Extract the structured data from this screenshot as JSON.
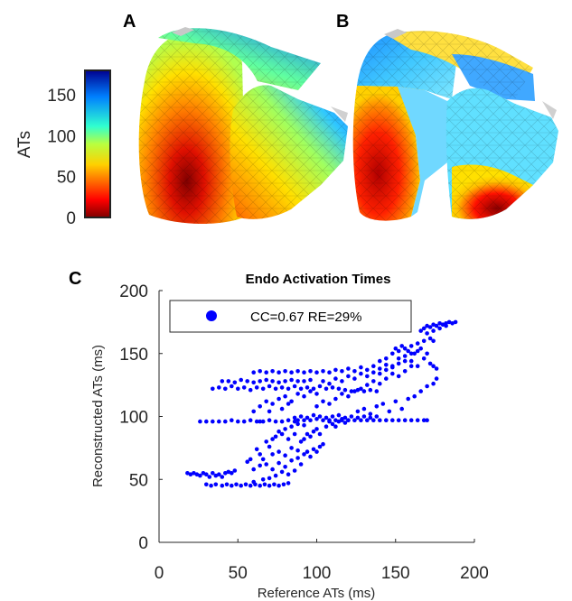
{
  "panels": {
    "a_label": "A",
    "b_label": "B",
    "c_label": "C"
  },
  "colorbar": {
    "title": "ATs",
    "ticks": [
      "0",
      "50",
      "100",
      "150"
    ],
    "tick_values": [
      0,
      50,
      100,
      150
    ],
    "range": [
      0,
      180
    ],
    "colormap": "jet-reversed"
  },
  "heart_maps": [
    {
      "name": "A",
      "description_colors": [
        "#8b0000",
        "#ff2000",
        "#ffd000",
        "#2090ff"
      ]
    },
    {
      "name": "B",
      "description_colors": [
        "#8b0000",
        "#ff2000",
        "#ffd000",
        "#2090ff"
      ]
    }
  ],
  "chart_data": {
    "type": "scatter",
    "title": "Endo Activation Times",
    "xlabel": "Reference ATs (ms)",
    "ylabel": "Reconstructed ATs (ms)",
    "xlim": [
      0,
      200
    ],
    "ylim": [
      0,
      200
    ],
    "xticks": [
      "0",
      "50",
      "100",
      "150",
      "200"
    ],
    "yticks": [
      "0",
      "50",
      "100",
      "150",
      "200"
    ],
    "grid": false,
    "legend_position": "top-left",
    "marker_color": "#0000ff",
    "series": [
      {
        "name": "CC=0.67 RE=29%",
        "points": [
          [
            18,
            55
          ],
          [
            20,
            54
          ],
          [
            22,
            55
          ],
          [
            24,
            54
          ],
          [
            26,
            53
          ],
          [
            28,
            55
          ],
          [
            30,
            54
          ],
          [
            32,
            52
          ],
          [
            34,
            55
          ],
          [
            36,
            53
          ],
          [
            38,
            54
          ],
          [
            40,
            52
          ],
          [
            42,
            55
          ],
          [
            44,
            56
          ],
          [
            46,
            55
          ],
          [
            48,
            57
          ],
          [
            30,
            46
          ],
          [
            33,
            45
          ],
          [
            36,
            46
          ],
          [
            40,
            45
          ],
          [
            43,
            46
          ],
          [
            46,
            45
          ],
          [
            49,
            46
          ],
          [
            52,
            45
          ],
          [
            55,
            46
          ],
          [
            58,
            45
          ],
          [
            61,
            46
          ],
          [
            64,
            45
          ],
          [
            67,
            46
          ],
          [
            70,
            45
          ],
          [
            73,
            46
          ],
          [
            76,
            45
          ],
          [
            79,
            46
          ],
          [
            82,
            47
          ],
          [
            60,
            48
          ],
          [
            66,
            50
          ],
          [
            70,
            51
          ],
          [
            74,
            53
          ],
          [
            78,
            56
          ],
          [
            82,
            54
          ],
          [
            86,
            57
          ],
          [
            60,
            58
          ],
          [
            64,
            61
          ],
          [
            68,
            62
          ],
          [
            72,
            58
          ],
          [
            76,
            63
          ],
          [
            80,
            60
          ],
          [
            84,
            65
          ],
          [
            88,
            67
          ],
          [
            90,
            62
          ],
          [
            92,
            70
          ],
          [
            94,
            72
          ],
          [
            96,
            68
          ],
          [
            98,
            74
          ],
          [
            100,
            72
          ],
          [
            102,
            76
          ],
          [
            104,
            78
          ],
          [
            72,
            70
          ],
          [
            76,
            72
          ],
          [
            80,
            69
          ],
          [
            84,
            75
          ],
          [
            88,
            73
          ],
          [
            90,
            80
          ],
          [
            92,
            82
          ],
          [
            94,
            86
          ],
          [
            96,
            84
          ],
          [
            98,
            88
          ],
          [
            100,
            90
          ],
          [
            102,
            86
          ],
          [
            106,
            92
          ],
          [
            108,
            96
          ],
          [
            110,
            94
          ],
          [
            112,
            92
          ],
          [
            114,
            96
          ],
          [
            116,
            98
          ],
          [
            118,
            95
          ],
          [
            120,
            97
          ],
          [
            26,
            96
          ],
          [
            30,
            96
          ],
          [
            34,
            96
          ],
          [
            38,
            96
          ],
          [
            42,
            96
          ],
          [
            46,
            97
          ],
          [
            50,
            96
          ],
          [
            54,
            96
          ],
          [
            58,
            97
          ],
          [
            62,
            96
          ],
          [
            66,
            96
          ],
          [
            70,
            97
          ],
          [
            74,
            96
          ],
          [
            78,
            96
          ],
          [
            82,
            97
          ],
          [
            86,
            96
          ],
          [
            88,
            97
          ],
          [
            92,
            97
          ],
          [
            96,
            97
          ],
          [
            100,
            98
          ],
          [
            104,
            97
          ],
          [
            108,
            97
          ],
          [
            112,
            97
          ],
          [
            116,
            97
          ],
          [
            120,
            97
          ],
          [
            124,
            97
          ],
          [
            128,
            97
          ],
          [
            132,
            97
          ],
          [
            136,
            97
          ],
          [
            140,
            97
          ],
          [
            144,
            97
          ],
          [
            148,
            97
          ],
          [
            152,
            97
          ],
          [
            156,
            97
          ],
          [
            160,
            97
          ],
          [
            164,
            97
          ],
          [
            168,
            97
          ],
          [
            170,
            97
          ],
          [
            86,
            99
          ],
          [
            90,
            100
          ],
          [
            94,
            99
          ],
          [
            98,
            101
          ],
          [
            102,
            100
          ],
          [
            106,
            99
          ],
          [
            110,
            100
          ],
          [
            114,
            101
          ],
          [
            118,
            99
          ],
          [
            122,
            100
          ],
          [
            126,
            99
          ],
          [
            130,
            100
          ],
          [
            134,
            99
          ],
          [
            138,
            100
          ],
          [
            76,
            88
          ],
          [
            80,
            90
          ],
          [
            84,
            92
          ],
          [
            88,
            94
          ],
          [
            92,
            93
          ],
          [
            74,
            84
          ],
          [
            78,
            86
          ],
          [
            82,
            82
          ],
          [
            86,
            86
          ],
          [
            68,
            80
          ],
          [
            70,
            76
          ],
          [
            72,
            82
          ],
          [
            62,
            74
          ],
          [
            64,
            70
          ],
          [
            66,
            66
          ],
          [
            56,
            64
          ],
          [
            58,
            66
          ],
          [
            34,
            122
          ],
          [
            38,
            123
          ],
          [
            42,
            122
          ],
          [
            46,
            124
          ],
          [
            50,
            122
          ],
          [
            54,
            123
          ],
          [
            58,
            121
          ],
          [
            62,
            123
          ],
          [
            66,
            122
          ],
          [
            70,
            124
          ],
          [
            74,
            122
          ],
          [
            78,
            123
          ],
          [
            82,
            122
          ],
          [
            86,
            124
          ],
          [
            90,
            122
          ],
          [
            94,
            123
          ],
          [
            98,
            122
          ],
          [
            102,
            124
          ],
          [
            106,
            122
          ],
          [
            110,
            123
          ],
          [
            114,
            122
          ],
          [
            118,
            121
          ],
          [
            122,
            120
          ],
          [
            126,
            121
          ],
          [
            130,
            120
          ],
          [
            134,
            121
          ],
          [
            138,
            120
          ],
          [
            40,
            128
          ],
          [
            44,
            128
          ],
          [
            48,
            127
          ],
          [
            52,
            129
          ],
          [
            56,
            128
          ],
          [
            60,
            127
          ],
          [
            64,
            128
          ],
          [
            68,
            129
          ],
          [
            72,
            128
          ],
          [
            76,
            127
          ],
          [
            80,
            128
          ],
          [
            84,
            129
          ],
          [
            88,
            128
          ],
          [
            92,
            128
          ],
          [
            96,
            129
          ],
          [
            60,
            135
          ],
          [
            64,
            136
          ],
          [
            68,
            135
          ],
          [
            72,
            136
          ],
          [
            76,
            135
          ],
          [
            80,
            136
          ],
          [
            84,
            135
          ],
          [
            88,
            136
          ],
          [
            92,
            135
          ],
          [
            96,
            136
          ],
          [
            100,
            135
          ],
          [
            104,
            136
          ],
          [
            108,
            135
          ],
          [
            112,
            137
          ],
          [
            116,
            136
          ],
          [
            120,
            138
          ],
          [
            124,
            136
          ],
          [
            128,
            139
          ],
          [
            132,
            137
          ],
          [
            136,
            140
          ],
          [
            140,
            138
          ],
          [
            144,
            141
          ],
          [
            148,
            140
          ],
          [
            152,
            142
          ],
          [
            156,
            144
          ],
          [
            100,
            108
          ],
          [
            104,
            112
          ],
          [
            108,
            110
          ],
          [
            112,
            114
          ],
          [
            116,
            118
          ],
          [
            120,
            116
          ],
          [
            124,
            120
          ],
          [
            128,
            122
          ],
          [
            132,
            125
          ],
          [
            136,
            128
          ],
          [
            140,
            126
          ],
          [
            144,
            130
          ],
          [
            148,
            134
          ],
          [
            152,
            132
          ],
          [
            156,
            136
          ],
          [
            160,
            140
          ],
          [
            104,
            128
          ],
          [
            108,
            126
          ],
          [
            112,
            130
          ],
          [
            116,
            128
          ],
          [
            120,
            132
          ],
          [
            124,
            130
          ],
          [
            128,
            134
          ],
          [
            132,
            132
          ],
          [
            136,
            135
          ],
          [
            140,
            134
          ],
          [
            144,
            137
          ],
          [
            148,
            139
          ],
          [
            152,
            146
          ],
          [
            156,
            148
          ],
          [
            160,
            150
          ],
          [
            164,
            152
          ],
          [
            126,
            104
          ],
          [
            130,
            106
          ],
          [
            134,
            102
          ],
          [
            138,
            108
          ],
          [
            142,
            110
          ],
          [
            146,
            104
          ],
          [
            150,
            112
          ],
          [
            154,
            106
          ],
          [
            158,
            114
          ],
          [
            162,
            116
          ],
          [
            166,
            120
          ],
          [
            170,
            124
          ],
          [
            174,
            126
          ],
          [
            176,
            130
          ],
          [
            140,
            144
          ],
          [
            144,
            146
          ],
          [
            148,
            150
          ],
          [
            152,
            152
          ],
          [
            156,
            154
          ],
          [
            160,
            156
          ],
          [
            164,
            158
          ],
          [
            168,
            160
          ],
          [
            172,
            162
          ],
          [
            174,
            160
          ],
          [
            150,
            154
          ],
          [
            154,
            156
          ],
          [
            158,
            152
          ],
          [
            162,
            150
          ],
          [
            166,
            154
          ],
          [
            170,
            150
          ],
          [
            160,
            144
          ],
          [
            164,
            140
          ],
          [
            168,
            146
          ],
          [
            172,
            142
          ],
          [
            174,
            140
          ],
          [
            176,
            138
          ],
          [
            166,
            168
          ],
          [
            168,
            170
          ],
          [
            170,
            172
          ],
          [
            172,
            171
          ],
          [
            174,
            173
          ],
          [
            176,
            172
          ],
          [
            178,
            174
          ],
          [
            180,
            173
          ],
          [
            182,
            174
          ],
          [
            184,
            175
          ],
          [
            186,
            174
          ],
          [
            188,
            175
          ],
          [
            170,
            166
          ],
          [
            174,
            168
          ],
          [
            178,
            170
          ],
          [
            182,
            172
          ],
          [
            60,
            104
          ],
          [
            64,
            108
          ],
          [
            68,
            112
          ],
          [
            72,
            110
          ],
          [
            76,
            114
          ],
          [
            80,
            116
          ],
          [
            84,
            112
          ],
          [
            88,
            118
          ],
          [
            92,
            116
          ],
          [
            96,
            120
          ],
          [
            100,
            118
          ],
          [
            64,
            96
          ],
          [
            70,
            104
          ],
          [
            78,
            106
          ],
          [
            82,
            110
          ]
        ]
      }
    ]
  }
}
